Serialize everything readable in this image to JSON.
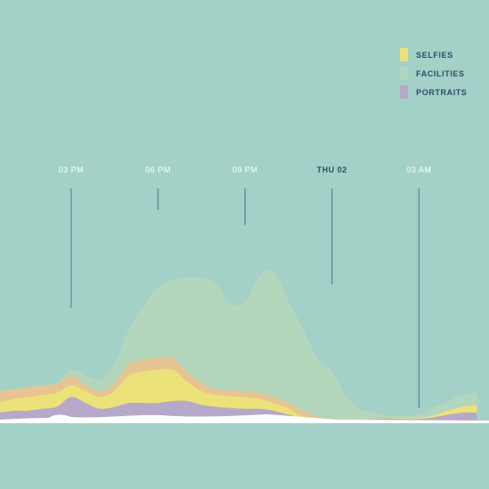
{
  "chart_data": {
    "type": "area",
    "stacking": "streamgraph",
    "title": "",
    "xlabel": "",
    "ylabel": "",
    "x_tick_labels": [
      {
        "label": "03 PM",
        "time": "15:00",
        "bold": false
      },
      {
        "label": "06 PM",
        "time": "18:00",
        "bold": false
      },
      {
        "label": "09 PM",
        "time": "21:00",
        "bold": false
      },
      {
        "label": "THU 02",
        "time": "24:00",
        "bold": true
      },
      {
        "label": "03 AM",
        "time": "27:00",
        "bold": false
      }
    ],
    "legend_placement": "top-right",
    "grid": false,
    "x_hours": [
      12.5,
      13,
      13.5,
      14,
      14.5,
      15,
      15.5,
      16,
      16.5,
      17,
      17.5,
      18,
      18.5,
      19,
      19.5,
      20,
      20.5,
      21,
      21.5,
      22,
      22.5,
      23,
      23.5,
      24,
      24.5,
      25,
      25.5,
      26,
      26.5,
      27,
      27.5,
      28,
      28.5,
      29
    ],
    "series": [
      {
        "name": "PORTRAITS",
        "color": "#b6a8c8",
        "values": [
          2,
          2.5,
          2.5,
          3,
          3.5,
          6,
          4.5,
          3,
          3.5,
          4.5,
          4.5,
          4.5,
          5,
          5,
          4,
          3.5,
          3.2,
          3,
          3,
          2.5,
          1.5,
          0.5,
          0.2,
          0.1,
          0.1,
          0.2,
          0.4,
          0.5,
          0.4,
          0.4,
          0.8,
          1.5,
          2,
          2
        ]
      },
      {
        "name": "SELFIES",
        "color": "#ece27a",
        "values": [
          2.5,
          3,
          3.5,
          3.5,
          3.5,
          3,
          3,
          3,
          4,
          7,
          8,
          8.5,
          8,
          5,
          3.5,
          3,
          3,
          3,
          2.5,
          2,
          1.5,
          0.5,
          0.2,
          0.1,
          0.1,
          0.1,
          0.1,
          0.1,
          0.2,
          0.2,
          0.5,
          1,
          1.5,
          2
        ]
      },
      {
        "name": "",
        "color": "#e6c592",
        "values": [
          3,
          2.5,
          2.5,
          2.5,
          2.5,
          2.5,
          1.5,
          1.5,
          2,
          3,
          3,
          3,
          3,
          2.5,
          2,
          1.5,
          1.5,
          1.5,
          1.5,
          1.5,
          1.5,
          1.5,
          0.5,
          0.2,
          0.1,
          0,
          0,
          0,
          0,
          0,
          0,
          0,
          0,
          0
        ]
      },
      {
        "name": "FACILITIES",
        "color": "#b4d6bc",
        "values": [
          0,
          0,
          0,
          0,
          0,
          1.5,
          2.5,
          3,
          5,
          9,
          14,
          18,
          20,
          24,
          27,
          27,
          22,
          23,
          30,
          32,
          26,
          21,
          15,
          12,
          6,
          2.5,
          1.5,
          0.5,
          0.5,
          1,
          2,
          2.5,
          3,
          3
        ]
      }
    ]
  },
  "legend": [
    {
      "label": "SELFIES",
      "color": "#ece27a"
    },
    {
      "label": "FACILITIES",
      "color": "#b4d6bc"
    },
    {
      "label": "PORTRAITS",
      "color": "#b6a8c8"
    }
  ],
  "colors": {
    "background": "#a3d1c8",
    "tick_line": "#55707e",
    "tick_text": "#ffffff",
    "tick_text_bold": "#2f4a6a",
    "baseline": "#ffffff"
  }
}
